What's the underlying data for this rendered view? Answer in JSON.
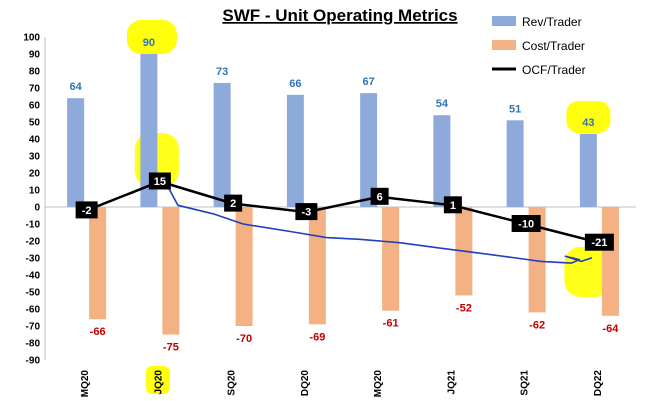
{
  "chart_data": {
    "type": "bar",
    "title": "SWF - Unit Operating Metrics",
    "categories": [
      "MQ20",
      "JQ20",
      "SQ20",
      "DQ20",
      "MQ20",
      "JQ21",
      "SQ21",
      "DQ22"
    ],
    "series": [
      {
        "name": "Rev/Trader",
        "type": "bar",
        "color": "#8eaadb",
        "values": [
          64,
          90,
          73,
          66,
          67,
          54,
          51,
          43
        ]
      },
      {
        "name": "Cost/Trader",
        "type": "bar",
        "color": "#f4b183",
        "values": [
          -66,
          -75,
          -70,
          -69,
          -61,
          -52,
          -62,
          -64
        ]
      },
      {
        "name": "OCF/Trader",
        "type": "line",
        "color": "#000000",
        "values": [
          -2,
          15,
          2,
          -3,
          6,
          1,
          -10,
          -21
        ]
      }
    ],
    "ylim": [
      -90,
      100
    ],
    "ytick_step": 10,
    "legend_position": "top-right",
    "rev_label_color": "#2e75b6",
    "cost_label_color": "#c00000",
    "annotations": {
      "highlight_color": "#ffff00",
      "pen_color": "#1f3fbf",
      "highlighted_categories": [
        1,
        7
      ]
    }
  }
}
